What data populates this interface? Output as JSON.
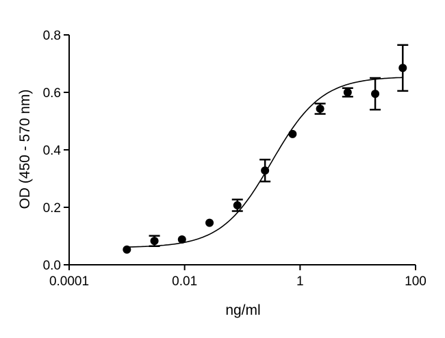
{
  "chart_data": {
    "type": "scatter",
    "title": "",
    "xlabel": "ng/ml",
    "ylabel": "OD (450 - 570 nm)",
    "x_scale": "log",
    "xlim": [
      0.0001,
      100
    ],
    "ylim": [
      0.0,
      0.8
    ],
    "x_ticks": [
      0.0001,
      0.01,
      1,
      100
    ],
    "x_tick_labels": [
      "0.0001",
      "0.01",
      "1",
      "100"
    ],
    "y_ticks": [
      0.0,
      0.2,
      0.4,
      0.6,
      0.8
    ],
    "y_tick_labels": [
      "0.0",
      "0.2",
      "0.4",
      "0.6",
      "0.8"
    ],
    "grid": false,
    "legend": "none",
    "series": [
      {
        "points": [
          {
            "x": 0.001,
            "y": 0.053,
            "err": 0.0
          },
          {
            "x": 0.003,
            "y": 0.083,
            "err": 0.018
          },
          {
            "x": 0.009,
            "y": 0.088,
            "err": 0.0
          },
          {
            "x": 0.027,
            "y": 0.146,
            "err": 0.0
          },
          {
            "x": 0.082,
            "y": 0.207,
            "err": 0.02
          },
          {
            "x": 0.247,
            "y": 0.328,
            "err": 0.038
          },
          {
            "x": 0.741,
            "y": 0.455,
            "err": 0.0
          },
          {
            "x": 2.222,
            "y": 0.543,
            "err": 0.018
          },
          {
            "x": 6.667,
            "y": 0.6,
            "err": 0.015
          },
          {
            "x": 20.0,
            "y": 0.595,
            "err": 0.055
          },
          {
            "x": 60.0,
            "y": 0.685,
            "err": 0.08
          }
        ]
      }
    ],
    "fit_curve": {
      "type": "4PL",
      "bottom": 0.06,
      "top": 0.655,
      "ec50": 0.32,
      "hill": 1.0
    },
    "colors": {
      "marker": "#000000",
      "line": "#000000",
      "axis": "#000000"
    }
  }
}
